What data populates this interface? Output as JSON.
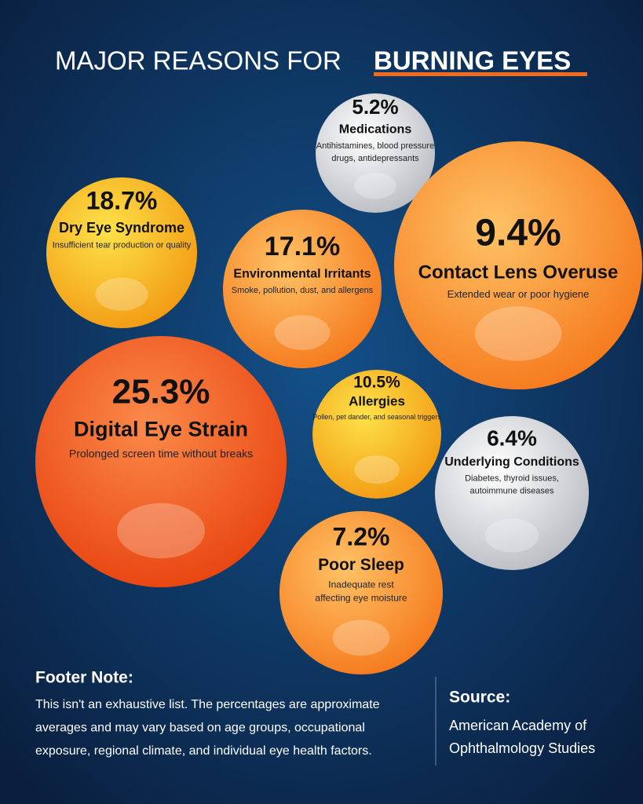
{
  "header": {
    "title_plain": "MAJOR REASONS FOR",
    "title_bold": "BURNING EYES"
  },
  "items": [
    {
      "percent": "5.2%",
      "title": "Medications",
      "description": [
        "Antihistamines, blood pressure",
        "drugs, antidepressants"
      ]
    },
    {
      "percent": "18.7%",
      "title": "Dry Eye Syndrome",
      "description": [
        "Insufficient tear production or quality"
      ]
    },
    {
      "percent": "17.1%",
      "title": "Environmental Irritants",
      "description": [
        "Smoke, pollution, dust, and allergens"
      ]
    },
    {
      "percent": "9.4%",
      "title": "Contact Lens Overuse",
      "description": [
        "Extended wear or poor hygiene"
      ]
    },
    {
      "percent": "25.3%",
      "title": "Digital Eye Strain",
      "description": [
        "Prolonged screen time without breaks"
      ]
    },
    {
      "percent": "10.5%",
      "title": "Allergies",
      "description": [
        "Pollen, pet dander, and seasonal triggers"
      ]
    },
    {
      "percent": "6.4%",
      "title": "Underlying Conditions",
      "description": [
        "Diabetes, thyroid issues,",
        "autoimmune diseases"
      ]
    },
    {
      "percent": "7.2%",
      "title": "Poor Sleep",
      "description": [
        "Inadequate rest",
        "affecting eye moisture"
      ]
    }
  ],
  "footer": {
    "heading": "Footer Note:",
    "lines": [
      "This isn't an exhaustive list. The percentages are approximate",
      "averages and may vary based on age groups, occupational",
      "exposure, regional climate, and individual eye health factors."
    ]
  },
  "source": {
    "heading": "Source:",
    "lines": [
      "American Academy of",
      "Ophthalmology Studies"
    ]
  }
}
